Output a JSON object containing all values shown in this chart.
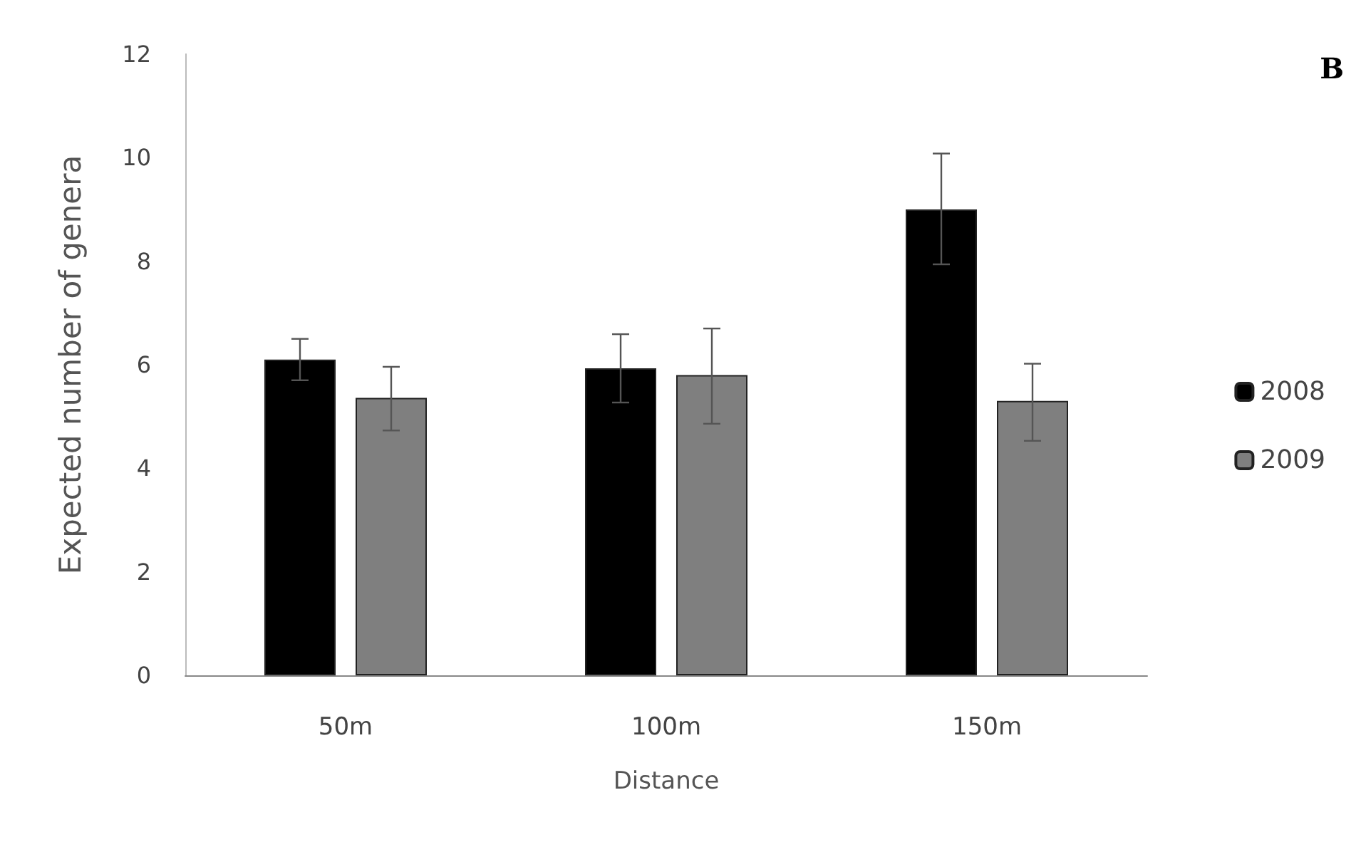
{
  "chart_data": {
    "type": "bar",
    "xlabel": "Distance",
    "ylabel": "Expected number of genera",
    "categories": [
      "50m",
      "100m",
      "150m"
    ],
    "series": [
      {
        "name": "2008",
        "color": "#000000",
        "values": [
          6.1,
          5.93,
          9.0
        ],
        "errors": [
          [
            5.7,
            6.5
          ],
          [
            5.27,
            6.59
          ],
          [
            7.94,
            10.08
          ]
        ]
      },
      {
        "name": "2009",
        "color": "#7f7f7f",
        "values": [
          5.36,
          5.8,
          5.3
        ],
        "errors": [
          [
            4.73,
            5.96
          ],
          [
            4.86,
            6.7
          ],
          [
            4.53,
            6.02
          ]
        ]
      }
    ],
    "ylim": [
      0,
      12
    ],
    "yticks": [
      0,
      2,
      4,
      6,
      8,
      10,
      12
    ],
    "grid": false,
    "legend": "right",
    "annotations": [
      "B"
    ]
  }
}
